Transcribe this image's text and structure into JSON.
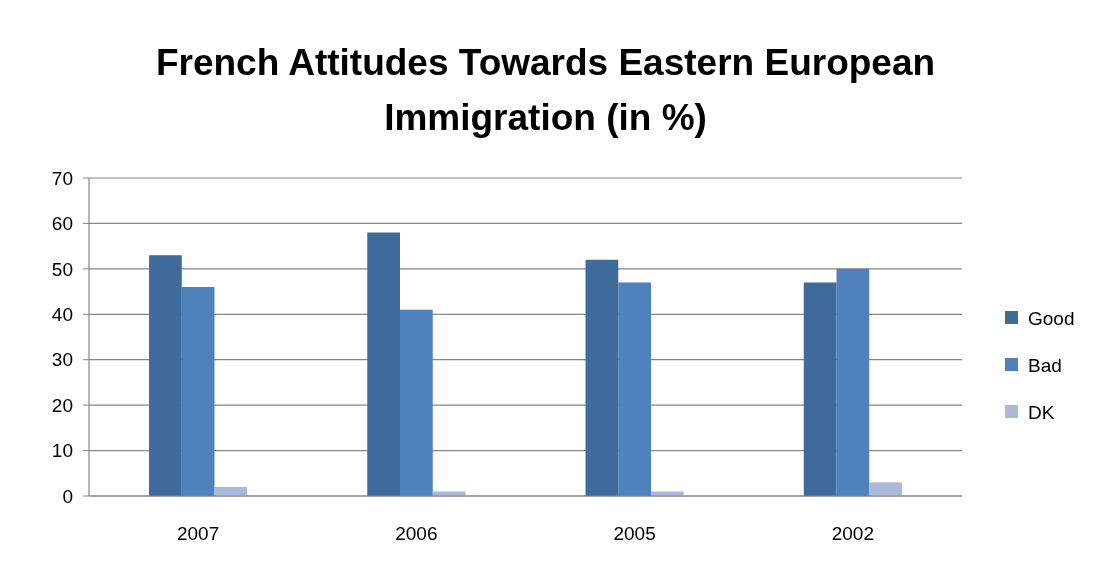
{
  "chart_data": {
    "type": "bar",
    "title": "French Attitudes Towards Eastern European Immigration (in %)",
    "categories": [
      "2007",
      "2006",
      "2005",
      "2002"
    ],
    "series": [
      {
        "name": "Good",
        "color": "#3f6a9c",
        "values": [
          53,
          58,
          52,
          47
        ]
      },
      {
        "name": "Bad",
        "color": "#4f81bd",
        "values": [
          46,
          41,
          47,
          50
        ]
      },
      {
        "name": "DK",
        "color": "#aab9d7",
        "values": [
          2,
          1,
          1,
          3
        ]
      }
    ],
    "ylim": [
      0,
      70
    ],
    "yticks": [
      0,
      10,
      20,
      30,
      40,
      50,
      60,
      70
    ],
    "grid": "y",
    "legend": "right"
  }
}
